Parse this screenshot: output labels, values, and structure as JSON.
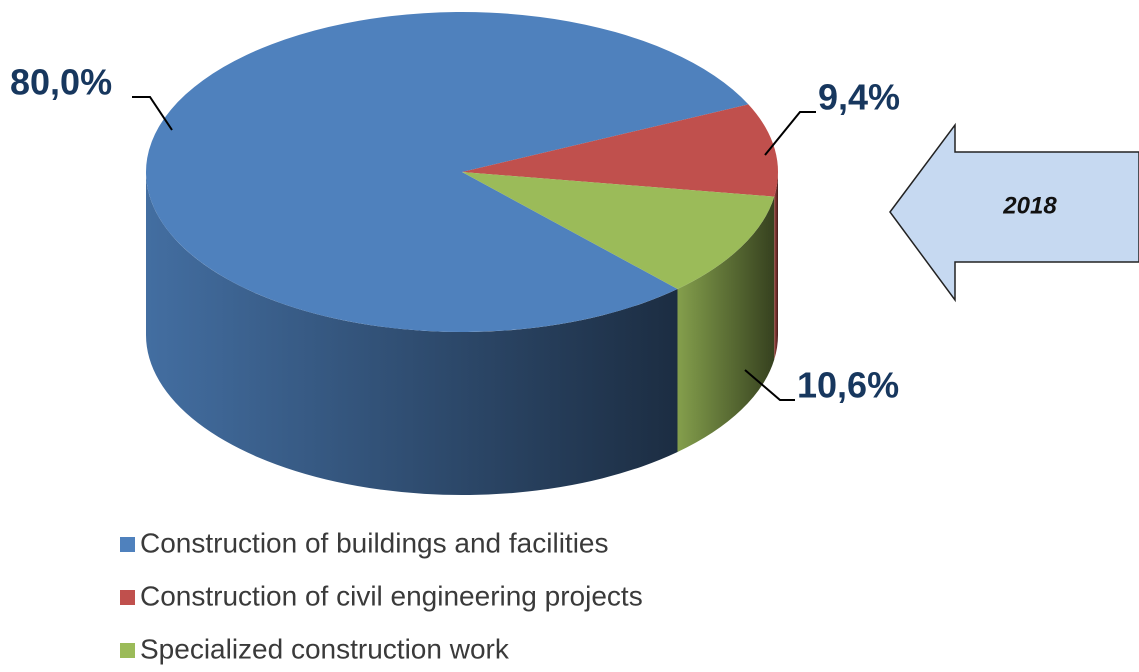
{
  "chart_data": {
    "type": "pie",
    "categories": [
      "Construction of buildings and facilities",
      "Construction of civil engineering projects",
      "Specialized construction work"
    ],
    "values": [
      80.0,
      9.4,
      10.6
    ],
    "value_labels": [
      "80,0%",
      "9,4%",
      "10,6%"
    ],
    "colors": [
      "#4f81bd",
      "#c0504d",
      "#9bbb59"
    ],
    "annotation": "2018"
  }
}
